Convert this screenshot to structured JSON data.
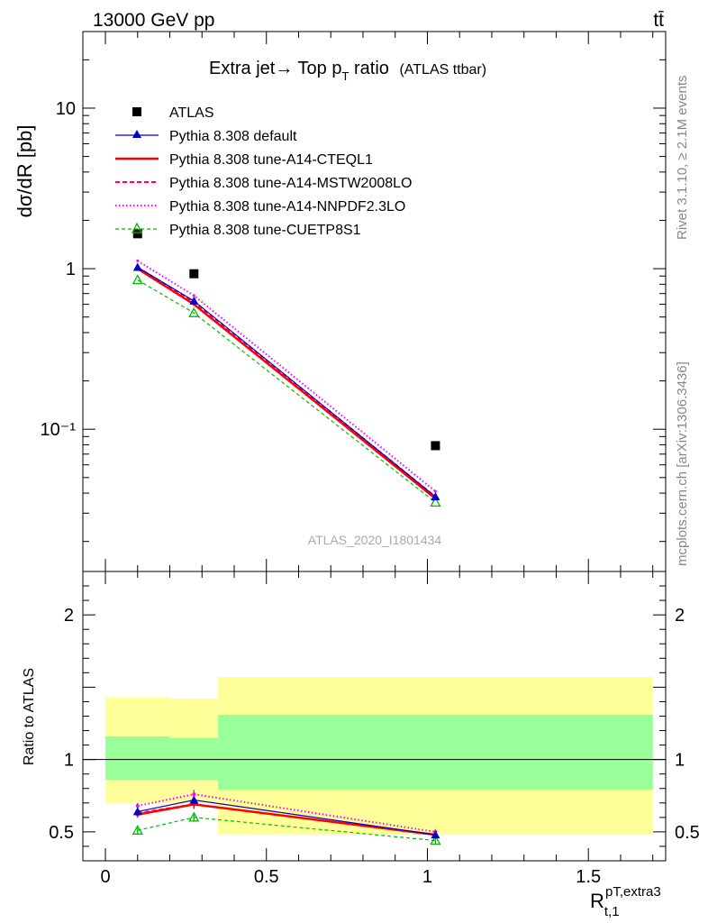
{
  "header": {
    "left": "13000 GeV pp",
    "right": "tt̄"
  },
  "side_labels": {
    "rivet": "Rivet 3.1.10, ≥ 2.1M events",
    "mcplots": "mcplots.cern.ch [arXiv:1306.3436]"
  },
  "top_panel": {
    "title_main": "Extra jet→ Top p",
    "title_sub": "T",
    "title_tail": " ratio",
    "title_note": "(ATLAS ttbar)",
    "ylabel": "dσ/dR [pb]",
    "watermark": "ATLAS_2020_I1801434",
    "yticks": [
      {
        "v": 10,
        "label": "10"
      },
      {
        "v": 1,
        "label": "1"
      },
      {
        "v": 0.1,
        "label": "10⁻¹"
      }
    ]
  },
  "bottom_panel": {
    "ylabel": "Ratio to ATLAS",
    "yticks": [
      "2",
      "1",
      "0.5"
    ],
    "xlabel": "R",
    "xlabel_sup": "pT,extra3",
    "xlabel_sub": "t,1",
    "xticks": [
      "0",
      "0.5",
      "1",
      "1.5"
    ]
  },
  "legend": [
    "ATLAS",
    "Pythia 8.308 default",
    "Pythia 8.308 tune-A14-CTEQL1",
    "Pythia 8.308 tune-A14-MSTW2008LO",
    "Pythia 8.308 tune-A14-NNPDF2.3LO",
    "Pythia 8.308 tune-CUETP8S1"
  ],
  "chart_data": [
    {
      "type": "line",
      "title": "Extra jet→ Top pT ratio (ATLAS ttbar)",
      "xlabel": "R_t,1^pT,extra3",
      "ylabel": "dσ/dR [pb]",
      "xlim": [
        -0.07,
        1.74
      ],
      "ylim": [
        0.013,
        30
      ],
      "yscale": "log",
      "x": [
        0.1,
        0.275,
        1.025
      ],
      "series": [
        {
          "name": "ATLAS",
          "color": "#000000",
          "values": [
            1.65,
            0.93,
            0.079
          ]
        },
        {
          "name": "Pythia 8.308 default",
          "color": "#0000cc",
          "values": [
            1.02,
            0.63,
            0.038
          ]
        },
        {
          "name": "Pythia 8.308 tune-A14-CTEQL1",
          "color": "#ff0000",
          "values": [
            1.0,
            0.6,
            0.037
          ]
        },
        {
          "name": "Pythia 8.308 tune-A14-MSTW2008LO",
          "color": "#ff0066",
          "values": [
            1.02,
            0.62,
            0.038
          ]
        },
        {
          "name": "Pythia 8.308 tune-A14-NNPDF2.3LO",
          "color": "#ff00ff",
          "values": [
            1.12,
            0.68,
            0.041
          ]
        },
        {
          "name": "Pythia 8.308 tune-CUETP8S1",
          "color": "#00bb00",
          "values": [
            0.85,
            0.53,
            0.035
          ]
        }
      ]
    },
    {
      "type": "line",
      "ylabel": "Ratio to ATLAS",
      "xlim": [
        -0.07,
        1.74
      ],
      "ylim": [
        0.3,
        2.3
      ],
      "x": [
        0.1,
        0.275,
        1.025
      ],
      "bands": [
        {
          "x0": 0.0,
          "x1": 0.2,
          "yellow": [
            0.7,
            1.43
          ],
          "green": [
            0.86,
            1.16
          ]
        },
        {
          "x0": 0.2,
          "x1": 0.35,
          "yellow": [
            0.7,
            1.42
          ],
          "green": [
            0.86,
            1.15
          ]
        },
        {
          "x0": 0.35,
          "x1": 1.7,
          "yellow": [
            0.48,
            1.57
          ],
          "green": [
            0.79,
            1.31
          ]
        }
      ],
      "series": [
        {
          "name": "Pythia 8.308 default",
          "color": "#0000cc",
          "values": [
            0.64,
            0.72,
            0.48
          ],
          "errors": [
            0.02,
            0.02,
            0.02
          ]
        },
        {
          "name": "Pythia 8.308 tune-A14-CTEQL1",
          "color": "#ff0000",
          "values": [
            0.62,
            0.69,
            0.48
          ],
          "errors": [
            0.02,
            0.03,
            0.02
          ]
        },
        {
          "name": "Pythia 8.308 tune-A14-MSTW2008LO",
          "color": "#ff0066",
          "values": [
            0.63,
            0.69,
            0.48
          ],
          "errors": [
            0.02,
            0.03,
            0.02
          ]
        },
        {
          "name": "Pythia 8.308 tune-A14-NNPDF2.3LO",
          "color": "#ff00ff",
          "values": [
            0.68,
            0.76,
            0.5
          ],
          "errors": [
            0.02,
            0.03,
            0.02
          ]
        },
        {
          "name": "Pythia 8.308 tune-CUETP8S1",
          "color": "#00bb00",
          "values": [
            0.51,
            0.6,
            0.44
          ],
          "errors": [
            0.02,
            0.03,
            0.03
          ]
        }
      ]
    }
  ]
}
